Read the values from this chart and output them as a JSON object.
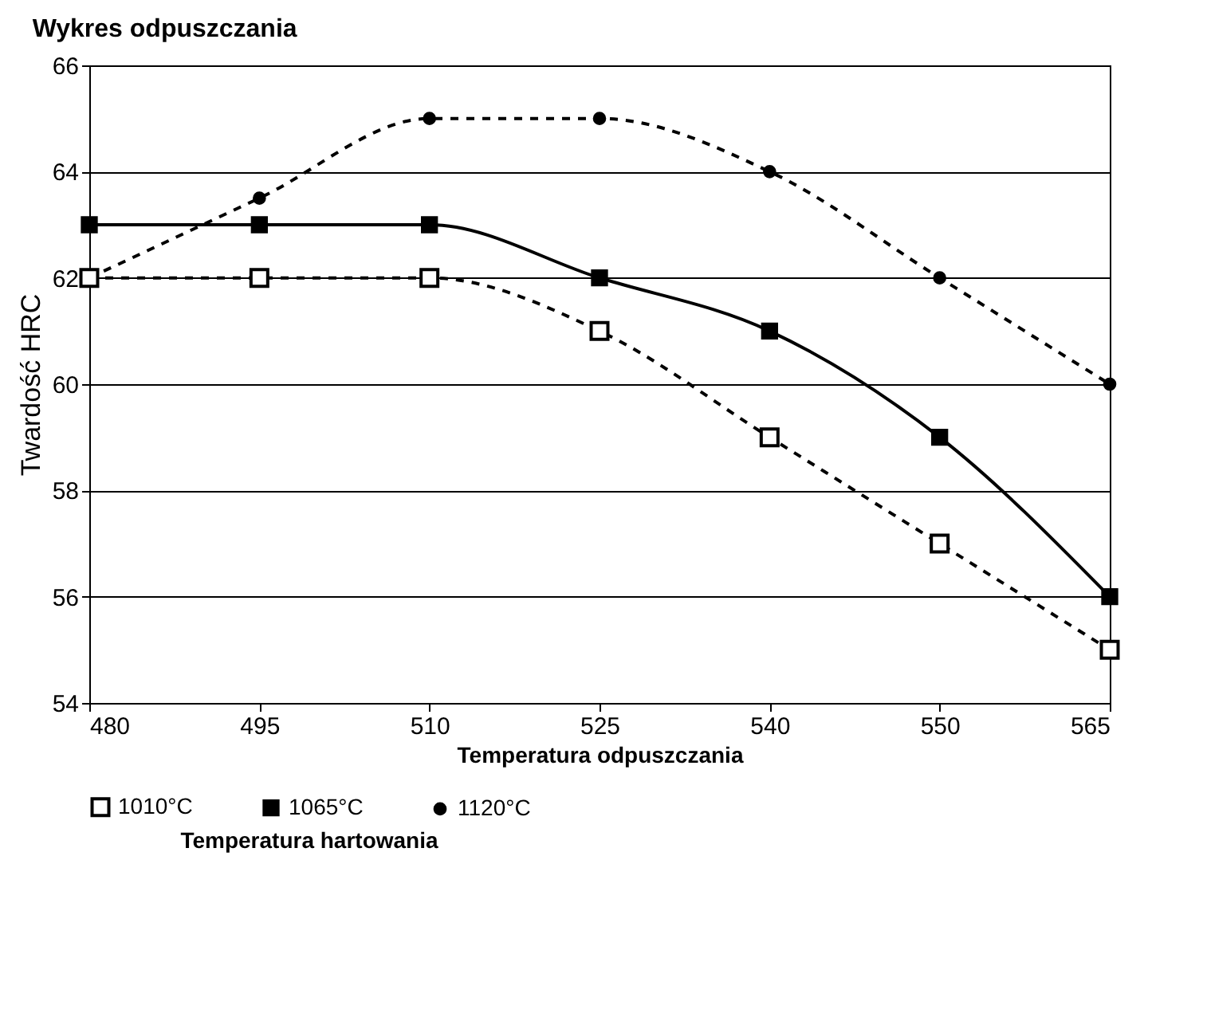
{
  "chart_data": {
    "type": "line",
    "title": "Wykres odpuszczania",
    "xlabel": "Temperatura odpuszczania",
    "ylabel": "Twardość HRC",
    "legend_title": "Temperatura hartowania",
    "categories": [
      "480",
      "495",
      "510",
      "525",
      "540",
      "550",
      "565"
    ],
    "series": [
      {
        "name": "1010°C",
        "color": "#000000",
        "values": [
          62,
          62,
          62,
          61,
          59,
          57,
          55
        ],
        "marker": "square",
        "line_style": "dashed"
      },
      {
        "name": "1065°C",
        "color": "#000000",
        "values": [
          63,
          63,
          63,
          62,
          61,
          59,
          56
        ],
        "marker": "square",
        "line_style": "solid"
      },
      {
        "name": "1120°C",
        "color": "#000000",
        "values": [
          62,
          63.5,
          65,
          65,
          64,
          62,
          60
        ],
        "marker": "circle",
        "line_style": "dashed"
      }
    ],
    "ylim": [
      54,
      66
    ],
    "yticks": [
      54,
      56,
      58,
      60,
      62,
      64,
      66
    ],
    "grid": "y",
    "legend": "bottom"
  }
}
